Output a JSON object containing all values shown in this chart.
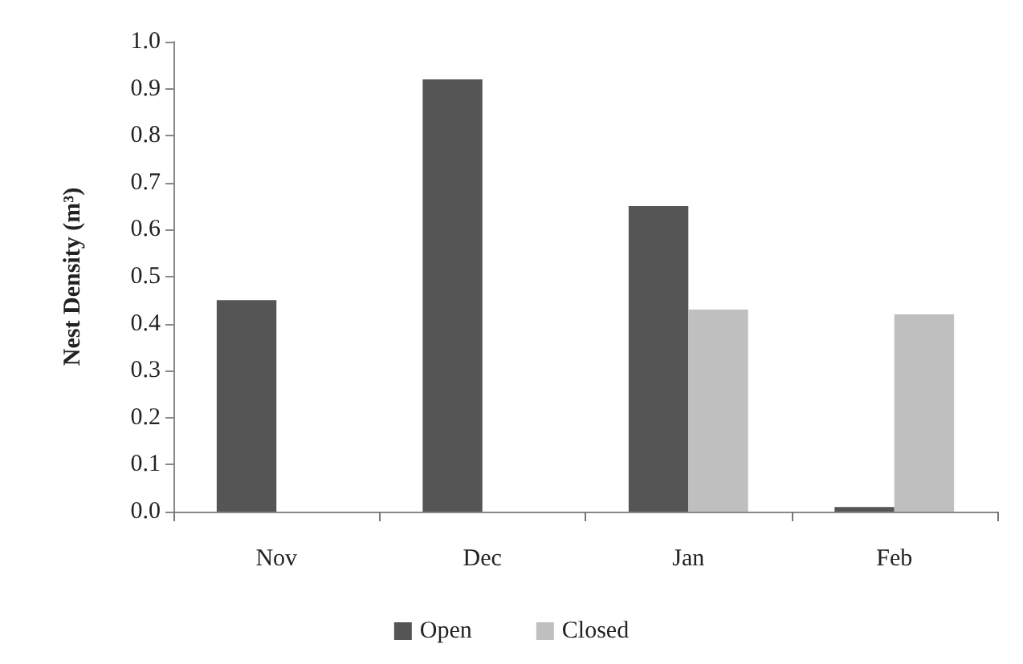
{
  "chart_data": {
    "type": "bar",
    "ylabel": "Nest Density (m³)",
    "categories": [
      "Nov",
      "Dec",
      "Jan",
      "Feb"
    ],
    "series": [
      {
        "name": "Open",
        "color": "#555555",
        "values": [
          0.45,
          0.92,
          0.65,
          0.01
        ]
      },
      {
        "name": "Closed",
        "color": "#bfbfbf",
        "values": [
          null,
          null,
          0.43,
          0.42
        ]
      }
    ],
    "ylim": [
      0,
      1
    ],
    "yticks": [
      {
        "value": 0,
        "label": "0.0"
      },
      0.1,
      0.2,
      0.3,
      0.4,
      0.5,
      0.6,
      0.7,
      0.8,
      0.9,
      {
        "value": 1,
        "label": "1.0"
      }
    ],
    "grid": false,
    "legend": "bottom"
  }
}
